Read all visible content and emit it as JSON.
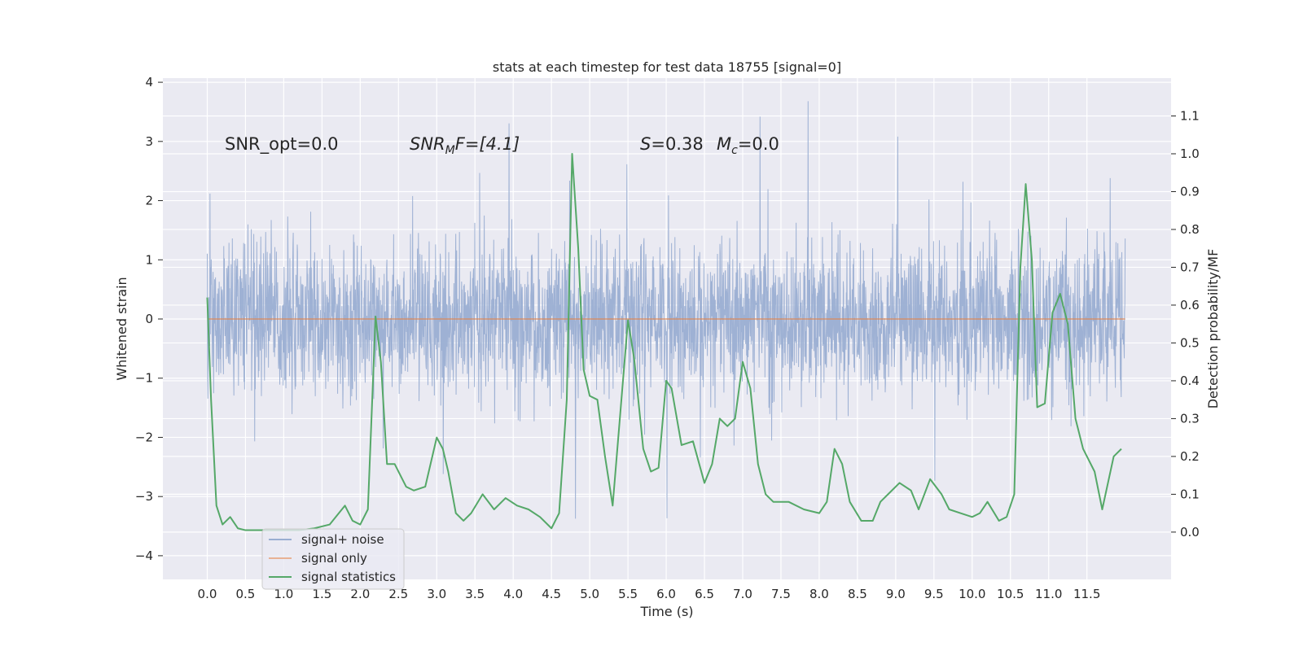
{
  "chart_data": {
    "type": "line",
    "title": "stats at each timestep for test data 18755 [signal=0]",
    "xlabel": "Time (s)",
    "ylabel": "Whitened strain",
    "y2label": "Detection probability/MF",
    "xlim": [
      -0.58,
      12.6
    ],
    "ylim": [
      -4.4,
      4.07
    ],
    "y2lim": [
      -0.125,
      1.2
    ],
    "x_ticks": [
      0.0,
      0.5,
      1.0,
      1.5,
      2.0,
      2.5,
      3.0,
      3.5,
      4.0,
      4.5,
      5.0,
      5.5,
      6.0,
      6.5,
      7.0,
      7.5,
      8.0,
      8.5,
      9.0,
      9.5,
      10.0,
      10.5,
      11.0,
      11.5
    ],
    "x_tick_labels": [
      "0.0",
      "0.5",
      "1.0",
      "1.5",
      "2.0",
      "2.5",
      "3.0",
      "3.5",
      "4.0",
      "4.5",
      "5.0",
      "5.5",
      "6.0",
      "6.5",
      "7.0",
      "7.5",
      "8.0",
      "8.5",
      "9.0",
      "9.5",
      "10.0",
      "10.5",
      "11.0",
      "11.5"
    ],
    "y_ticks": [
      -4,
      -3,
      -2,
      -1,
      0,
      1,
      2,
      3,
      4
    ],
    "y_tick_labels": [
      "−4",
      "−3",
      "−2",
      "−1",
      "0",
      "1",
      "2",
      "3",
      "4"
    ],
    "y2_ticks": [
      0.0,
      0.1,
      0.2,
      0.3,
      0.4,
      0.5,
      0.6,
      0.7,
      0.8,
      0.9,
      1.0,
      1.1
    ],
    "y2_tick_labels": [
      "0.0",
      "0.1",
      "0.2",
      "0.3",
      "0.4",
      "0.5",
      "0.6",
      "0.7",
      "0.8",
      "0.9",
      "1.0",
      "1.1"
    ],
    "grid": true,
    "legend_position": "lower-left",
    "annotations": {
      "snr_opt": "SNR_opt=0.0",
      "snr_mf_main": "SNR",
      "snr_mf_sub": "M",
      "snr_mf_rest": "F=[4.1]",
      "s_main": "S",
      "s_rest": "=0.38",
      "mc_main": "M",
      "mc_sub": "c",
      "mc_rest": "=0.0"
    },
    "series": [
      {
        "name": "signal+ noise",
        "color": "#9aaed2",
        "x_range": [
          0.0,
          12.0
        ],
        "typical_range": [
          -1.7,
          1.6
        ],
        "extremes": [
          -4.07,
          3.68
        ]
      },
      {
        "name": "signal only",
        "color": "#dd8452",
        "x": [
          0.0,
          12.0
        ],
        "y": [
          0.0,
          0.0
        ]
      },
      {
        "name": "signal statistics",
        "color": "#55a868",
        "axis": "right",
        "x": [
          0.0,
          0.05,
          0.12,
          0.2,
          0.3,
          0.4,
          0.5,
          0.6,
          0.8,
          1.0,
          1.2,
          1.4,
          1.6,
          1.8,
          1.9,
          2.0,
          2.1,
          2.2,
          2.27,
          2.35,
          2.45,
          2.6,
          2.7,
          2.85,
          3.0,
          3.08,
          3.15,
          3.25,
          3.35,
          3.45,
          3.6,
          3.75,
          3.9,
          4.05,
          4.2,
          4.35,
          4.5,
          4.6,
          4.7,
          4.77,
          4.85,
          4.92,
          5.0,
          5.1,
          5.2,
          5.3,
          5.5,
          5.58,
          5.7,
          5.8,
          5.9,
          6.0,
          6.07,
          6.2,
          6.35,
          6.5,
          6.6,
          6.7,
          6.8,
          6.9,
          7.0,
          7.1,
          7.2,
          7.3,
          7.4,
          7.6,
          7.8,
          8.0,
          8.1,
          8.15,
          8.2,
          8.3,
          8.4,
          8.55,
          8.7,
          8.8,
          8.95,
          9.05,
          9.2,
          9.3,
          9.45,
          9.6,
          9.7,
          9.85,
          10.0,
          10.1,
          10.2,
          10.35,
          10.45,
          10.55,
          10.63,
          10.7,
          10.78,
          10.85,
          10.95,
          11.05,
          11.15,
          11.25,
          11.35,
          11.45,
          11.6,
          11.7,
          11.85,
          11.95
        ],
        "y": [
          0.62,
          0.35,
          0.07,
          0.02,
          0.04,
          0.01,
          0.005,
          0.005,
          0.005,
          0.005,
          0.005,
          0.01,
          0.02,
          0.07,
          0.03,
          0.02,
          0.06,
          0.57,
          0.45,
          0.18,
          0.18,
          0.12,
          0.11,
          0.12,
          0.25,
          0.22,
          0.16,
          0.05,
          0.03,
          0.05,
          0.1,
          0.06,
          0.09,
          0.07,
          0.06,
          0.04,
          0.01,
          0.05,
          0.35,
          1.0,
          0.75,
          0.43,
          0.36,
          0.35,
          0.2,
          0.07,
          0.56,
          0.46,
          0.22,
          0.16,
          0.17,
          0.4,
          0.38,
          0.23,
          0.24,
          0.13,
          0.18,
          0.3,
          0.28,
          0.3,
          0.45,
          0.38,
          0.18,
          0.1,
          0.08,
          0.08,
          0.06,
          0.05,
          0.08,
          0.15,
          0.22,
          0.18,
          0.08,
          0.03,
          0.03,
          0.08,
          0.11,
          0.13,
          0.11,
          0.06,
          0.14,
          0.1,
          0.06,
          0.05,
          0.04,
          0.05,
          0.08,
          0.03,
          0.04,
          0.1,
          0.7,
          0.92,
          0.72,
          0.33,
          0.34,
          0.58,
          0.63,
          0.55,
          0.3,
          0.22,
          0.16,
          0.06,
          0.2,
          0.22
        ]
      }
    ]
  }
}
